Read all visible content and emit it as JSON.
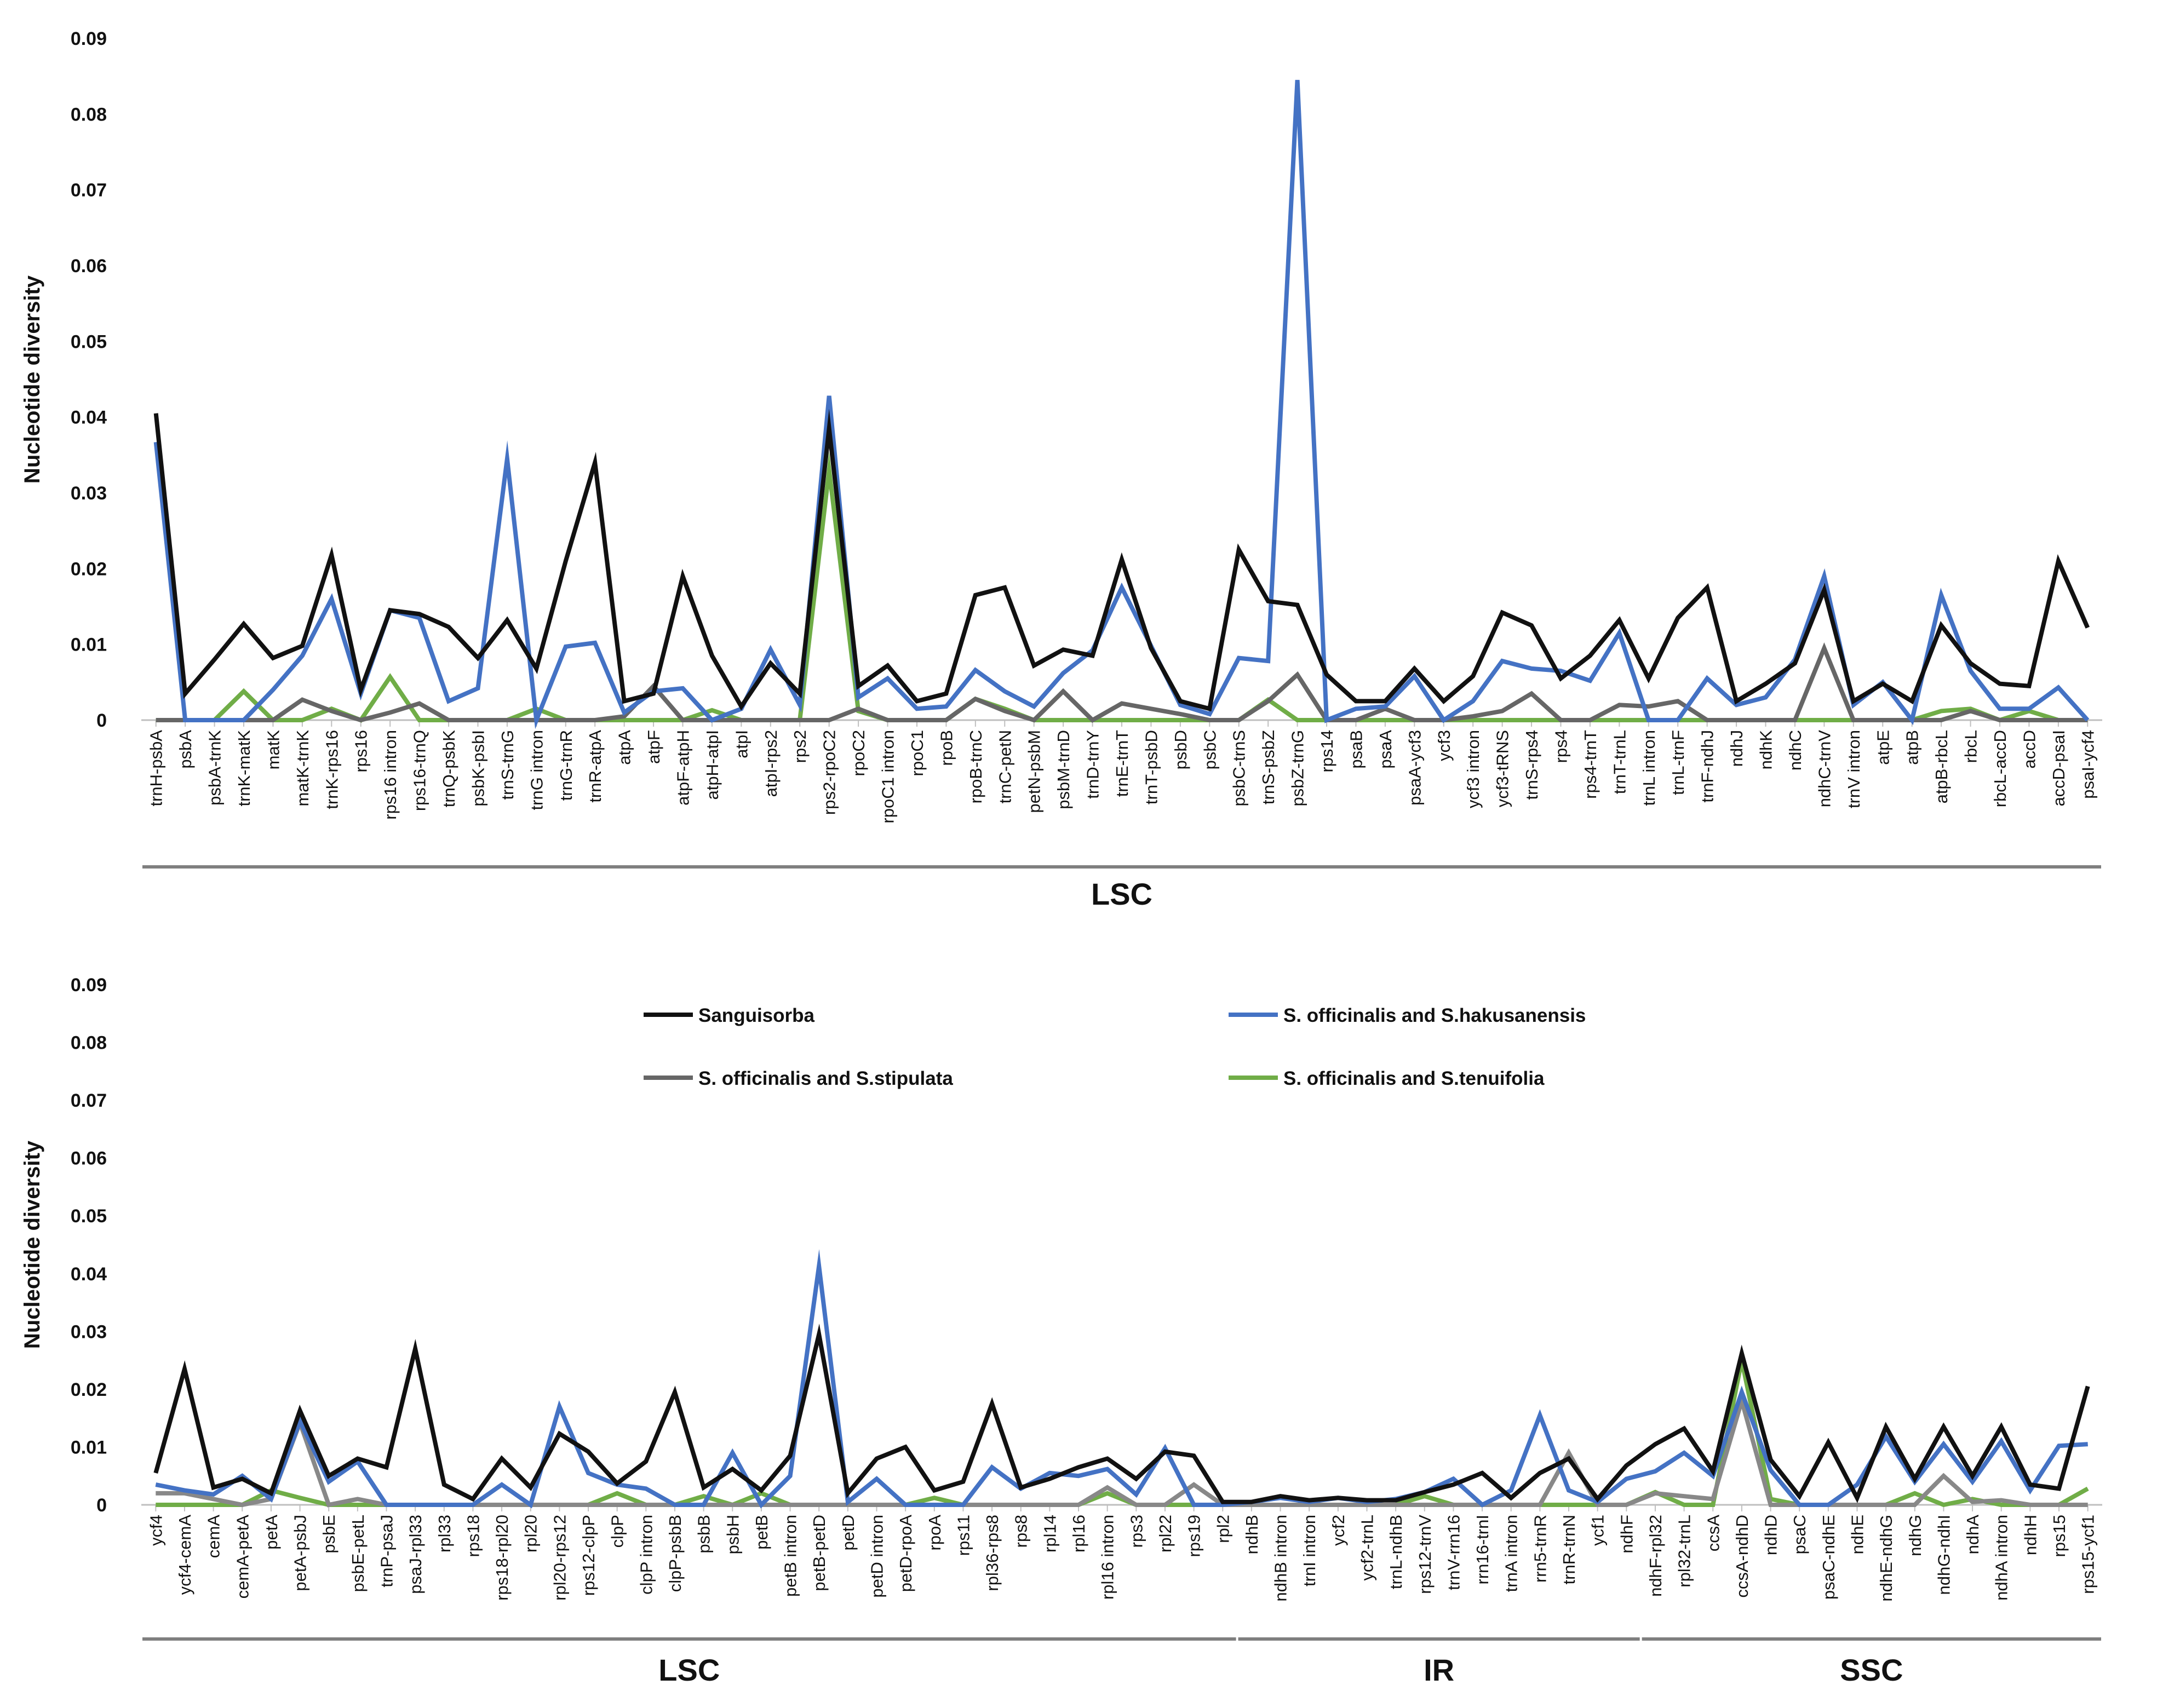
{
  "chart_data": [
    {
      "type": "line",
      "ylabel": "Nucleotide diversity",
      "ylim": [
        0,
        0.09
      ],
      "yticks": [
        "0",
        "0.01",
        "0.02",
        "0.03",
        "0.04",
        "0.05",
        "0.06",
        "0.07",
        "0.08",
        "0.09"
      ],
      "categories": [
        "trnH-psbA",
        "psbA",
        "psbA-trnK",
        "trnK-matK",
        "matK",
        "matK-trnK",
        "trnK-rps16",
        "rps16",
        "rps16 intron",
        "rps16-trnQ",
        "trnQ-psbK",
        "psbK-psbI",
        "trnS-trnG",
        "trnG intron",
        "trnG-trnR",
        "trnR-atpA",
        "atpA",
        "atpF",
        "atpF-atpH",
        "atpH-atpI",
        "atpI",
        "atpI-rps2",
        "rps2",
        "rps2-rpoC2",
        "rpoC2",
        "rpoC1 intron",
        "rpoC1",
        "rpoB",
        "rpoB-trnC",
        "trnC-petN",
        "petN-psbM",
        "psbM-trnD",
        "trnD-trnY",
        "trnE-trnT",
        "trnT-psbD",
        "psbD",
        "psbC",
        "psbC-trnS",
        "trnS-psbZ",
        "psbZ-trnG",
        "rps14",
        "psaB",
        "psaA",
        "psaA-ycf3",
        "ycf3",
        "ycf3 intron",
        "ycf3-tRNS",
        "trnS-rps4",
        "rps4",
        "rps4-trnT",
        "trnT-trnL",
        "trnL intron",
        "trnL-trnF",
        "trnF-ndhJ",
        "ndhJ",
        "ndhK",
        "ndhC",
        "ndhC-trnV",
        "trnV intron",
        "atpE",
        "atpB",
        "atpB-rbcL",
        "rbcL",
        "rbcL-accD",
        "accD",
        "accD-psaI",
        "psaI-ycf4"
      ],
      "series": [
        {
          "name": "Sanguisorba",
          "color": "#111111",
          "values": [
            0.0405,
            0.0035,
            0.008,
            0.0127,
            0.0082,
            0.0098,
            0.0218,
            0.004,
            0.0145,
            0.014,
            0.0123,
            0.0082,
            0.0132,
            0.0068,
            0.021,
            0.034,
            0.0025,
            0.0035,
            0.019,
            0.0085,
            0.0018,
            0.0075,
            0.0035,
            0.0385,
            0.0045,
            0.0072,
            0.0025,
            0.0035,
            0.0165,
            0.0175,
            0.0072,
            0.0093,
            0.0085,
            0.0212,
            0.0095,
            0.0025,
            0.0015,
            0.0225,
            0.0157,
            0.0152,
            0.006,
            0.0025,
            0.0025,
            0.0068,
            0.0025,
            0.0058,
            0.0142,
            0.0125,
            0.0055,
            0.0085,
            0.0132,
            0.0055,
            0.0135,
            0.0175,
            0.0025,
            0.0048,
            0.0075,
            0.0172,
            0.0025,
            0.0048,
            0.0025,
            0.0125,
            0.0075,
            0.0048,
            0.0045,
            0.021,
            0.0122
          ]
        },
        {
          "name": "S. officinalis and S.hakusanensis",
          "color": "#4472c4",
          "values": [
            0.0367,
            0,
            0,
            0,
            0.004,
            0.0085,
            0.016,
            0.0035,
            0.0145,
            0.0135,
            0.0025,
            0.0042,
            0.0345,
            0,
            0.0097,
            0.0102,
            0.001,
            0.0038,
            0.0042,
            0,
            0.0015,
            0.0093,
            0.002,
            0.0428,
            0.003,
            0.0055,
            0.0015,
            0.0018,
            0.0066,
            0.0038,
            0.0018,
            0.0062,
            0.0092,
            0.0175,
            0.0098,
            0.002,
            0.0008,
            0.0082,
            0.0078,
            0.0845,
            0,
            0.0015,
            0.0018,
            0.0058,
            0,
            0.0025,
            0.0078,
            0.0068,
            0.0065,
            0.0052,
            0.0115,
            0,
            0,
            0.0055,
            0.002,
            0.003,
            0.008,
            0.019,
            0.002,
            0.005,
            0,
            0.0165,
            0.0065,
            0.0015,
            0.0015,
            0.0043,
            0
          ]
        },
        {
          "name": "S. officinalis and S.stipulata",
          "color": "#666666",
          "values": [
            0,
            0,
            0,
            0,
            0,
            0.0027,
            0.0012,
            0,
            0.001,
            0.0022,
            0,
            0,
            0,
            0,
            0,
            0,
            0.0005,
            0.0045,
            0,
            0,
            0,
            0,
            0,
            0,
            0.0015,
            0,
            0,
            0,
            0.0028,
            0.0012,
            0,
            0.0038,
            0,
            0.0022,
            0.0015,
            0.0008,
            0,
            0,
            0.0025,
            0.006,
            0,
            0,
            0.0015,
            0,
            0,
            0.0005,
            0.0012,
            0.0035,
            0,
            0,
            0.002,
            0.0018,
            0.0025,
            0,
            0,
            0,
            0,
            0.0095,
            0,
            0,
            0,
            0,
            0.0012,
            0,
            0,
            0,
            0
          ]
        },
        {
          "name": "S. officinalis and S.tenuifolia",
          "color": "#70ad47",
          "values": [
            0,
            0,
            0,
            0.0038,
            0,
            0,
            0.0015,
            0,
            0.0057,
            0,
            0,
            0,
            0,
            0.0015,
            0,
            0,
            0,
            0,
            0,
            0.0013,
            0,
            0,
            0,
            0.033,
            0.0012,
            0,
            0,
            0,
            0.0028,
            0.0015,
            0,
            0,
            0,
            0,
            0,
            0,
            0,
            0,
            0.0027,
            0,
            0,
            0,
            0,
            0,
            0,
            0,
            0,
            0,
            0,
            0,
            0,
            0,
            0,
            0,
            0,
            0,
            0,
            0,
            0,
            0,
            0,
            0.0012,
            0.0015,
            0,
            0.0012,
            0,
            0
          ]
        }
      ],
      "regions": [
        {
          "label": "LSC",
          "from": 0,
          "to": 66
        }
      ]
    },
    {
      "type": "line",
      "ylabel": "Nucleotide diversity",
      "ylim": [
        0,
        0.09
      ],
      "yticks": [
        "0",
        "0.01",
        "0.02",
        "0.03",
        "0.04",
        "0.05",
        "0.06",
        "0.07",
        "0.08",
        "0.09"
      ],
      "categories": [
        "ycf4",
        "ycf4-cemA",
        "cemA",
        "cemA-petA",
        "petA",
        "petA-psbJ",
        "psbE",
        "psbE-petL",
        "trnP-psaJ",
        "psaJ-rpl33",
        "rpl33",
        "rps18",
        "rps18-rpl20",
        "rpl20",
        "rpl20-rps12",
        "rps12-clpP",
        "clpP",
        "clpP intron",
        "clpP-psbB",
        "psbB",
        "psbH",
        "petB",
        "petB intron",
        "petB-petD",
        "petD",
        "petD intron",
        "petD-rpoA",
        "rpoA",
        "rps11",
        "rpl36-rps8",
        "rps8",
        "rpl14",
        "rpl16",
        "rpl16 intron",
        "rps3",
        "rpl22",
        "rps19",
        "rpl2",
        "ndhB",
        "ndhB intron",
        "trnI intron",
        "ycf2",
        "ycf2-trnL",
        "trnL-ndhB",
        "rps12-trnV",
        "trnV-rrn16",
        "rrn16-trnI",
        "trnA intron",
        "rrn5-trnR",
        "trnR-trnN",
        "ycf1",
        "ndhF",
        "ndhF-rpl32",
        "rpl32-trnL",
        "ccsA",
        "ccsA-ndhD",
        "ndhD",
        "psaC",
        "psaC-ndhE",
        "ndhE",
        "ndhE-ndhG",
        "ndhG",
        "ndhG-ndhI",
        "ndhA",
        "ndhA intron",
        "ndhH",
        "rps15",
        "rps15-ycf1"
      ],
      "series": [
        {
          "name": "Sanguisorba",
          "color": "#111111",
          "values": [
            0.0055,
            0.0235,
            0.003,
            0.0045,
            0.002,
            0.0163,
            0.005,
            0.008,
            0.0065,
            0.027,
            0.0035,
            0.001,
            0.008,
            0.003,
            0.0123,
            0.0092,
            0.0037,
            0.0075,
            0.0195,
            0.003,
            0.0062,
            0.0025,
            0.0085,
            0.0295,
            0.002,
            0.008,
            0.01,
            0.0025,
            0.004,
            0.0175,
            0.003,
            0.0045,
            0.0065,
            0.008,
            0.0045,
            0.0092,
            0.0085,
            0.0005,
            0.0005,
            0.0015,
            0.0008,
            0.0012,
            0.0008,
            0.0008,
            0.0022,
            0.0035,
            0.0055,
            0.0012,
            0.0055,
            0.008,
            0.001,
            0.0068,
            0.0105,
            0.0132,
            0.0058,
            0.0262,
            0.0078,
            0.0015,
            0.0108,
            0.0012,
            0.0135,
            0.0045,
            0.0135,
            0.005,
            0.0135,
            0.0035,
            0.0028,
            0.0205
          ]
        },
        {
          "name": "S. officinalis and S.hakusanensis",
          "color": "#4472c4",
          "values": [
            0.0035,
            0.0025,
            0.0018,
            0.005,
            0.001,
            0.0145,
            0.004,
            0.0075,
            0,
            0,
            0,
            0,
            0.0035,
            0,
            0.017,
            0.0055,
            0.0035,
            0.0028,
            0,
            0,
            0.009,
            0,
            0.005,
            0.0413,
            0.0005,
            0.0045,
            0,
            0,
            0,
            0.0065,
            0.0028,
            0.0055,
            0.005,
            0.0062,
            0.0018,
            0.0098,
            0,
            0,
            0.0005,
            0.0012,
            0.0005,
            0.0012,
            0.0005,
            0.001,
            0.0022,
            0.0045,
            0,
            0.0025,
            0.0155,
            0.0025,
            0.0005,
            0.0045,
            0.0058,
            0.009,
            0.005,
            0.0195,
            0.006,
            0,
            0,
            0.0035,
            0.0118,
            0.004,
            0.0105,
            0.004,
            0.011,
            0.0025,
            0.0102,
            0.0105
          ]
        },
        {
          "name": "S. officinalis and S.stipulata",
          "color": "#888888",
          "values": [
            0.002,
            0.002,
            0.001,
            0,
            0.001,
            0.0142,
            0,
            0.001,
            0,
            0,
            0,
            0,
            0,
            0,
            0,
            0,
            0,
            0,
            0,
            0,
            0,
            0,
            0,
            0,
            0,
            0,
            0,
            0,
            0,
            0,
            0,
            0,
            0,
            0.003,
            0,
            0,
            0.0035,
            0,
            0,
            0,
            0,
            0,
            0,
            0,
            0,
            0,
            0,
            0,
            0,
            0.009,
            0,
            0,
            0.002,
            0.0015,
            0.001,
            0.018,
            0,
            0,
            0,
            0,
            0,
            0,
            0.005,
            0.0005,
            0.0008,
            0,
            0,
            0
          ]
        },
        {
          "name": "S. officinalis and S.tenuifolia",
          "color": "#70ad47",
          "values": [
            0,
            0,
            0,
            0,
            0.0025,
            0.0012,
            0,
            0,
            0,
            0,
            0,
            0,
            0,
            0,
            0,
            0,
            0.002,
            0,
            0,
            0.0015,
            0,
            0.002,
            0,
            0,
            0,
            0,
            0,
            0.0012,
            0,
            0,
            0,
            0,
            0,
            0.002,
            0,
            0,
            0,
            0,
            0,
            0,
            0,
            0,
            0,
            0,
            0.0015,
            0,
            0,
            0,
            0,
            0,
            0,
            0,
            0.0022,
            0,
            0,
            0.025,
            0.001,
            0,
            0,
            0,
            0,
            0.002,
            0,
            0.001,
            0,
            0,
            0,
            0.0028
          ]
        }
      ],
      "regions": [
        {
          "label": "LSC",
          "from": 0,
          "to": 37
        },
        {
          "label": "IR",
          "from": 38,
          "to": 51
        },
        {
          "label": "SSC",
          "from": 52,
          "to": 67
        }
      ]
    }
  ]
}
